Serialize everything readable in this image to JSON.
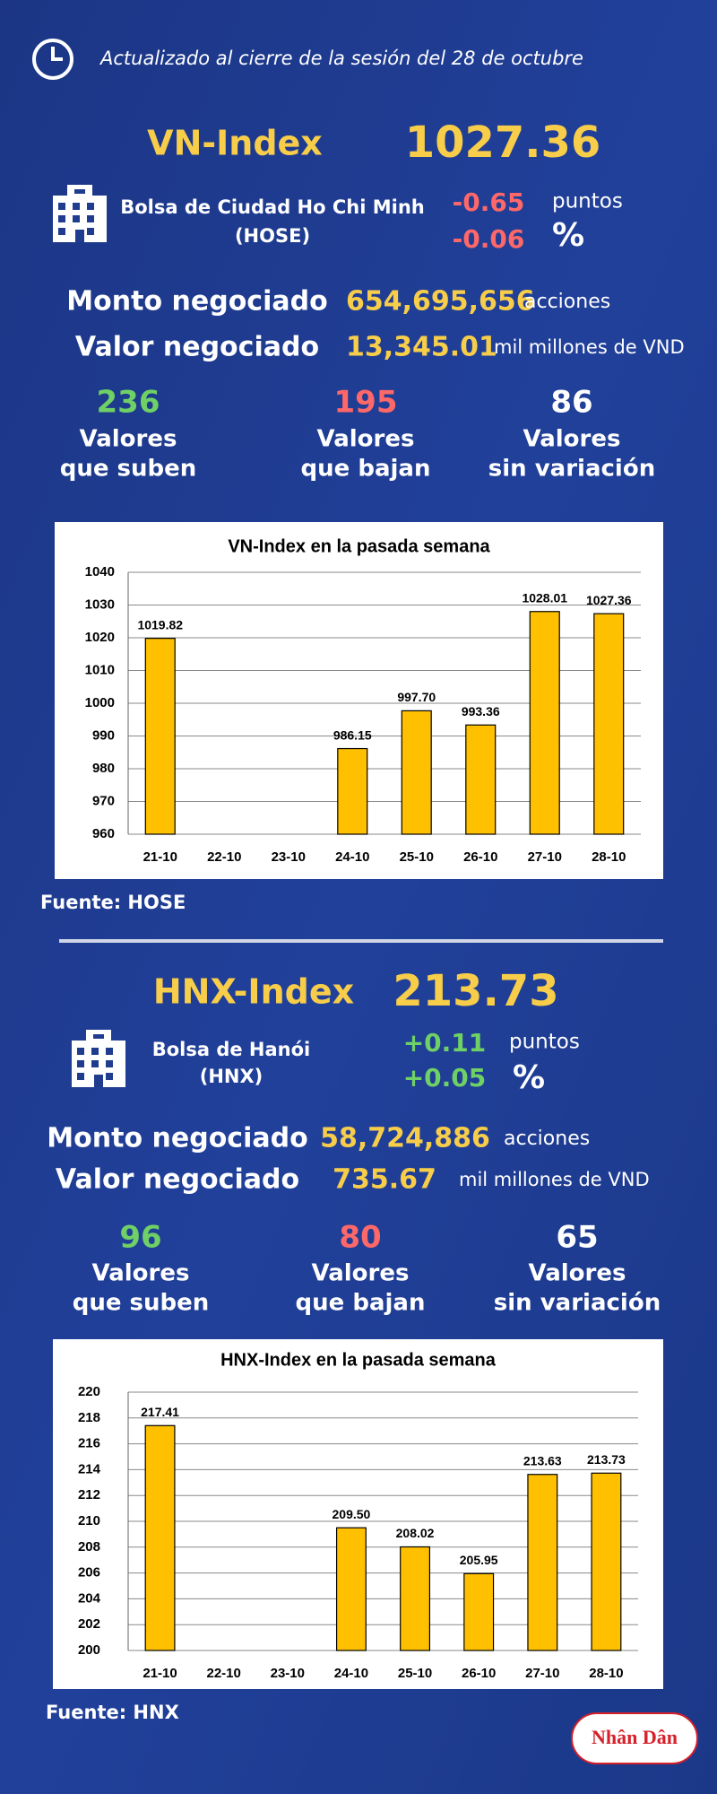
{
  "header": {
    "updated": "Actualizado al cierre de la sesión del 28 de octubre"
  },
  "sections": [
    {
      "index_name": "VN-Index",
      "index_value": "1027.36",
      "exchange": "Bolsa de Ciudad Ho Chi Minh",
      "exchange_code": "(HOSE)",
      "change_points": "-0.65",
      "points_unit": "puntos",
      "change_percent": "-0.06",
      "percent_unit": "%",
      "volume_label": "Monto negociado",
      "volume": "654,695,656",
      "volume_unit": "acciones",
      "value_label": "Valor negociado",
      "value": "13,345.01",
      "value_unit": "mil millones de VND",
      "stats": [
        {
          "count": "236",
          "line1": "Valores",
          "line2": "que suben"
        },
        {
          "count": "195",
          "line1": "Valores",
          "line2": "que bajan"
        },
        {
          "count": "86",
          "line1": "Valores",
          "line2": "sin variación"
        }
      ],
      "source": "Fuente: HOSE"
    },
    {
      "index_name": "HNX-Index",
      "index_value": "213.73",
      "exchange": "Bolsa de Hanói",
      "exchange_code": "(HNX)",
      "change_points": "+0.11",
      "points_unit": "puntos",
      "change_percent": "+0.05",
      "percent_unit": "%",
      "volume_label": "Monto negociado",
      "volume": "58,724,886",
      "volume_unit": "acciones",
      "value_label": "Valor negociado",
      "value": "735.67",
      "value_unit": "mil millones de VND",
      "stats": [
        {
          "count": "96",
          "line1": "Valores",
          "line2": "que suben"
        },
        {
          "count": "80",
          "line1": "Valores",
          "line2": "que bajan"
        },
        {
          "count": "65",
          "line1": "Valores",
          "line2": "sin variación"
        }
      ],
      "source": "Fuente:  HNX"
    }
  ],
  "logo": "Nhân Dân",
  "chart_data": [
    {
      "type": "bar",
      "title": "VN-Index en la pasada semana",
      "categories": [
        "21-10",
        "22-10",
        "23-10",
        "24-10",
        "25-10",
        "26-10",
        "27-10",
        "28-10"
      ],
      "values": [
        1019.82,
        null,
        null,
        986.15,
        997.7,
        993.36,
        1028.01,
        1027.36
      ],
      "value_labels": [
        "1019.82",
        null,
        null,
        "986.15",
        "997.70",
        "993.36",
        "1028.01",
        "1027.36"
      ],
      "color": "#ffc000",
      "ylim": [
        960,
        1040
      ],
      "yticks": [
        960,
        970,
        980,
        990,
        1000,
        1010,
        1020,
        1030,
        1040
      ],
      "grid": true
    },
    {
      "type": "bar",
      "title": "HNX-Index en la pasada semana",
      "categories": [
        "21-10",
        "22-10",
        "23-10",
        "24-10",
        "25-10",
        "26-10",
        "27-10",
        "28-10"
      ],
      "values": [
        217.41,
        null,
        null,
        209.5,
        208.02,
        205.95,
        213.63,
        213.73
      ],
      "value_labels": [
        "217.41",
        null,
        null,
        "209.50",
        "208.02",
        "205.95",
        "213.63",
        "213.73"
      ],
      "color": "#ffc000",
      "ylim": [
        200,
        220
      ],
      "yticks": [
        200,
        202,
        204,
        206,
        208,
        210,
        212,
        214,
        216,
        218,
        220
      ],
      "grid": true
    }
  ]
}
